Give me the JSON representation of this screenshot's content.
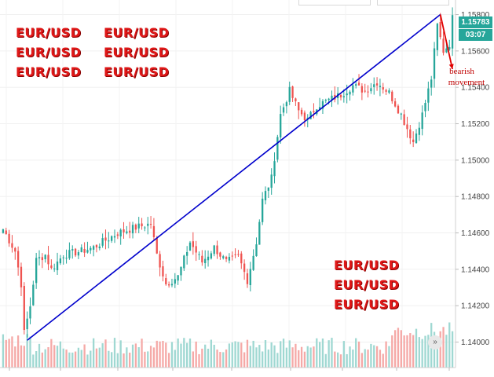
{
  "watermarks": {
    "top_left": [
      "EUR/USD",
      "EUR/USD",
      "EUR/USD",
      "EUR/USD",
      "EUR/USD",
      "EUR/USD"
    ],
    "bottom_right": [
      "EUR/USD",
      "EUR/USD",
      "EUR/USD"
    ]
  },
  "price_tag": {
    "price": "1.15783",
    "countdown": "03:07"
  },
  "annotation": {
    "line1": "bearish",
    "line2": "movement"
  },
  "scroll_icon": "double-chevron-right-icon",
  "colors": {
    "bull": "#26a69a",
    "bear": "#ef5350",
    "trendline": "#0000cc",
    "arrow": "#e00000",
    "watermark": "#e01818"
  },
  "chart_data": {
    "type": "candlestick",
    "instrument": "EUR/USD",
    "y_axis_ticks": [
      1.158,
      1.156,
      1.154,
      1.152,
      1.15,
      1.148,
      1.146,
      1.144,
      1.142,
      1.14
    ],
    "ylim": [
      1.1386,
      1.1588
    ],
    "candle_count": 150,
    "trendline": {
      "from": {
        "candle": 8,
        "price": 1.1401
      },
      "to": {
        "candle": 145,
        "price": 1.158
      }
    },
    "anchor_prices": [
      [
        0,
        1.1462
      ],
      [
        4,
        1.145
      ],
      [
        6,
        1.1432
      ],
      [
        7,
        1.1405
      ],
      [
        9,
        1.142
      ],
      [
        11,
        1.1445
      ],
      [
        14,
        1.1448
      ],
      [
        16,
        1.144
      ],
      [
        20,
        1.1448
      ],
      [
        26,
        1.145
      ],
      [
        30,
        1.1452
      ],
      [
        34,
        1.1456
      ],
      [
        38,
        1.146
      ],
      [
        44,
        1.1463
      ],
      [
        49,
        1.1465
      ],
      [
        51,
        1.1448
      ],
      [
        54,
        1.1432
      ],
      [
        58,
        1.1436
      ],
      [
        62,
        1.1455
      ],
      [
        66,
        1.1444
      ],
      [
        70,
        1.1452
      ],
      [
        74,
        1.1444
      ],
      [
        78,
        1.1447
      ],
      [
        81,
        1.1434
      ],
      [
        84,
        1.1455
      ],
      [
        86,
        1.1478
      ],
      [
        89,
        1.149
      ],
      [
        92,
        1.1525
      ],
      [
        95,
        1.1538
      ],
      [
        98,
        1.1527
      ],
      [
        101,
        1.1522
      ],
      [
        104,
        1.153
      ],
      [
        108,
        1.1533
      ],
      [
        112,
        1.1536
      ],
      [
        116,
        1.1541
      ],
      [
        120,
        1.1538
      ],
      [
        124,
        1.1543
      ],
      [
        128,
        1.1537
      ],
      [
        132,
        1.1525
      ],
      [
        136,
        1.151
      ],
      [
        139,
        1.1525
      ],
      [
        142,
        1.1545
      ],
      [
        144,
        1.1574
      ],
      [
        146,
        1.156
      ],
      [
        148,
        1.1564
      ],
      [
        149,
        1.1578
      ]
    ]
  }
}
